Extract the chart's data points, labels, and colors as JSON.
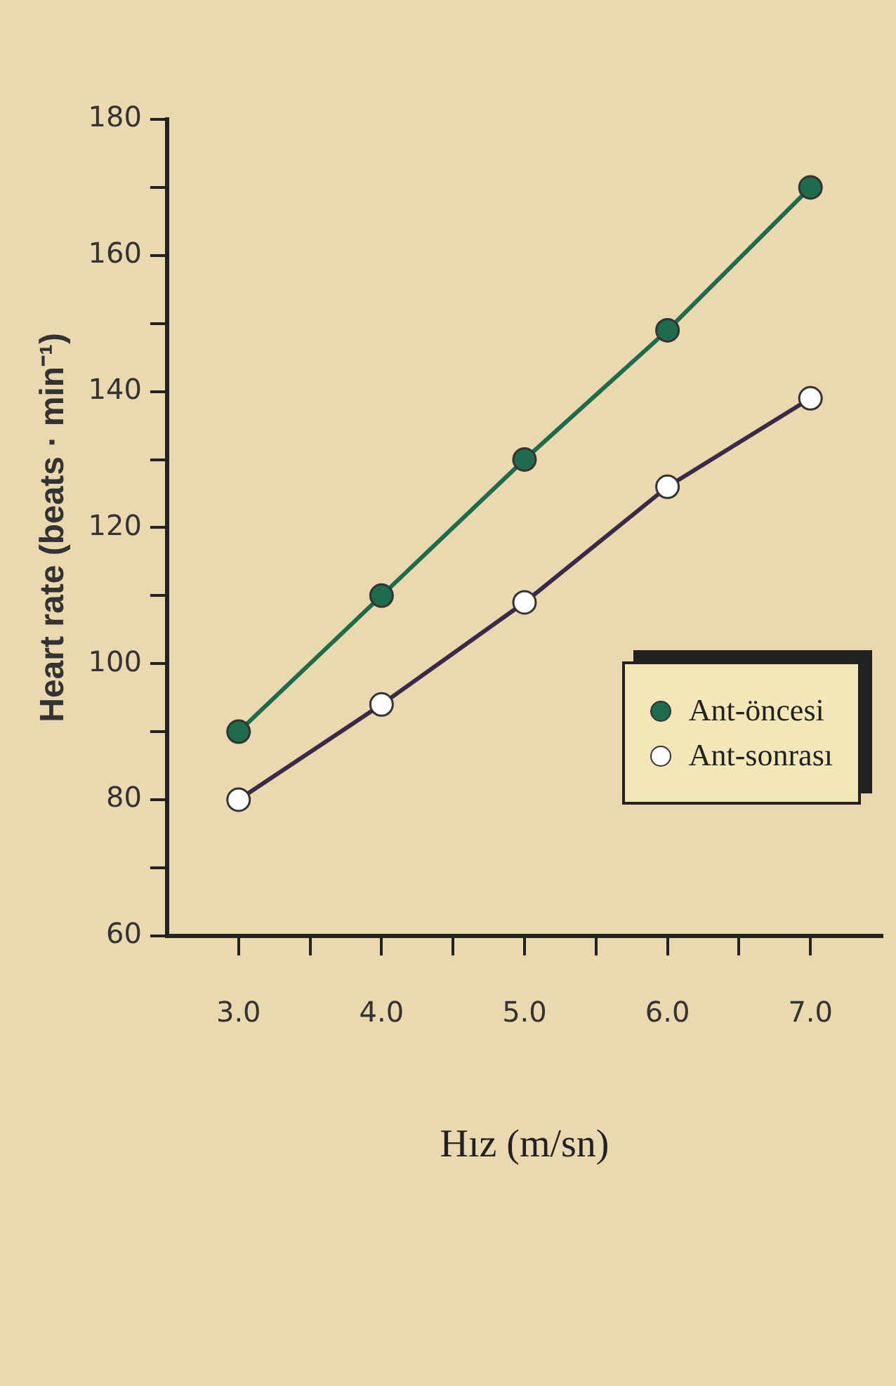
{
  "chart_data": {
    "type": "line",
    "xlabel": "Hız (m/sn)",
    "ylabel": "Heart rate (beats · min⁻¹)",
    "x": [
      3,
      4,
      5,
      6,
      7
    ],
    "series": [
      {
        "name": "Ant-öncesi",
        "color": "#1f6b4c",
        "values": [
          90,
          110,
          130,
          149,
          170
        ]
      },
      {
        "name": "Ant-sonrası",
        "color": "#ffffff",
        "values": [
          80,
          94,
          109,
          126,
          139
        ]
      }
    ],
    "xlim": [
      2.5,
      7.5
    ],
    "xticks": [
      {
        "value": 3,
        "label": "3.0"
      },
      {
        "value": 3.5,
        "label": null
      },
      {
        "value": 4,
        "label": "4.0"
      },
      {
        "value": 4.5,
        "label": null
      },
      {
        "value": 5,
        "label": "5.0"
      },
      {
        "value": 5.5,
        "label": null
      },
      {
        "value": 6,
        "label": "6.0"
      },
      {
        "value": 6.5,
        "label": null
      },
      {
        "value": 7,
        "label": "7.0"
      }
    ],
    "ylim": [
      60,
      180
    ],
    "yticks": [
      60,
      {
        "value": 70,
        "label": null
      },
      80,
      {
        "value": 90,
        "label": null
      },
      100,
      {
        "value": 110,
        "label": null
      },
      120,
      {
        "value": 130,
        "label": null
      },
      140,
      {
        "value": 150,
        "label": null
      },
      160,
      {
        "value": 170,
        "label": null
      },
      180
    ],
    "grid": false,
    "legend": "bottom right",
    "marker": "circle",
    "line_style": "solid"
  }
}
